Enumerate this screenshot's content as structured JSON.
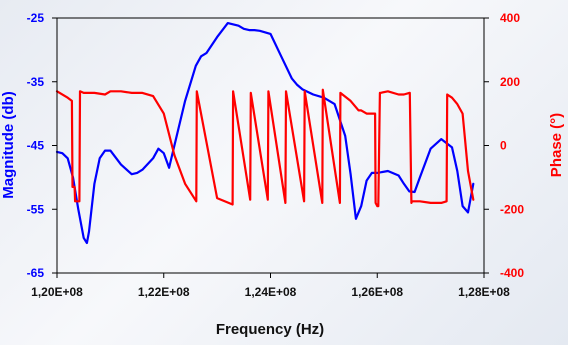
{
  "chart_data": {
    "type": "line",
    "xlabel": "Frequency (Hz)",
    "ylabel_left": "Magnitude (db)",
    "ylabel_right": "Phase (°)",
    "x_ticks": [
      "1,20E+08",
      "1,22E+08",
      "1,24E+08",
      "1,26E+08",
      "1,28E+08"
    ],
    "y_left_ticks": [
      "-25",
      "-35",
      "-45",
      "-55",
      "-65"
    ],
    "y_right_ticks": [
      "400",
      "200",
      "0",
      "-200",
      "-400"
    ],
    "xlim": [
      120000000,
      128000000
    ],
    "ylim_left": [
      -65,
      -25
    ],
    "ylim_right": [
      -400,
      400
    ],
    "grid": false,
    "colors": {
      "magnitude": "#0000ff",
      "phase": "#ff0000"
    },
    "series": [
      {
        "axis": "left",
        "x": [
          120000000,
          120100000,
          120200000,
          120300000,
          120400000,
          120500000,
          120560000,
          120600000,
          120700000,
          120800000,
          120900000,
          121000000,
          121200000,
          121400000,
          121500000,
          121600000,
          121800000,
          121900000,
          122000000,
          122100000,
          122200000,
          122400000,
          122600000,
          122700000,
          122800000,
          123000000,
          123200000,
          123400000,
          123500000,
          123600000,
          123700000,
          123800000,
          124000000,
          124200000,
          124400000,
          124500000,
          124600000,
          124800000,
          125000000,
          125200000,
          125400000,
          125500000,
          125600000,
          125700000,
          125800000,
          125900000,
          126000000,
          126200000,
          126400000,
          126500000,
          126600000,
          126700000,
          126800000,
          127000000,
          127200000,
          127400000,
          127500000,
          127600000,
          127700000,
          127800000
        ],
        "values": [
          -46,
          -46.2,
          -47,
          -50,
          -55,
          -59.5,
          -60.3,
          -58.5,
          -51,
          -47,
          -45.8,
          -45.8,
          -48,
          -49.5,
          -49.3,
          -48.8,
          -47,
          -45.5,
          -46.2,
          -48.5,
          -45,
          -38,
          -32.5,
          -31,
          -30.5,
          -28,
          -25.8,
          -26.2,
          -26.7,
          -26.9,
          -26.9,
          -27,
          -27.5,
          -31,
          -34.5,
          -35.5,
          -36.2,
          -37,
          -37.5,
          -38.5,
          -43.5,
          -49.5,
          -56.5,
          -54.5,
          -50.5,
          -49.3,
          -49.3,
          -49,
          -49.7,
          -51,
          -52.2,
          -52.3,
          -50,
          -45.5,
          -44,
          -45.3,
          -49,
          -54.5,
          -55.5,
          -51
        ]
      },
      {
        "axis": "right",
        "x": [
          120000000,
          120200000,
          120280000,
          120290000,
          120330000,
          120340000,
          120420000,
          120430000,
          120500000,
          120700000,
          120900000,
          121000000,
          121200000,
          121400000,
          121600000,
          121800000,
          122000000,
          122200000,
          122400000,
          122610000,
          122620000,
          123000000,
          123290000,
          123300000,
          123620000,
          123630000,
          123950000,
          123960000,
          124280000,
          124290000,
          124630000,
          124640000,
          124970000,
          124980000,
          125300000,
          125310000,
          125500000,
          125650000,
          125700000,
          125800000,
          125960000,
          125970000,
          126000000,
          126020000,
          126050000,
          126060000,
          126200000,
          126400000,
          126500000,
          126600000,
          126610000,
          126640000,
          126650000,
          126800000,
          127000000,
          127200000,
          127300000,
          127310000,
          127400000,
          127500000,
          127600000,
          127700000,
          127800000
        ],
        "values": [
          170,
          150,
          140,
          -130,
          -130,
          -175,
          -175,
          170,
          165,
          165,
          160,
          170,
          170,
          165,
          165,
          155,
          100,
          -30,
          -120,
          -175,
          170,
          -165,
          -185,
          170,
          -170,
          165,
          -170,
          170,
          -180,
          170,
          -175,
          170,
          -180,
          175,
          -180,
          165,
          140,
          110,
          110,
          100,
          100,
          -180,
          -190,
          -190,
          165,
          165,
          170,
          160,
          160,
          165,
          165,
          -180,
          -175,
          -175,
          -180,
          -180,
          -175,
          160,
          150,
          130,
          100,
          -80,
          -170
        ]
      }
    ]
  }
}
